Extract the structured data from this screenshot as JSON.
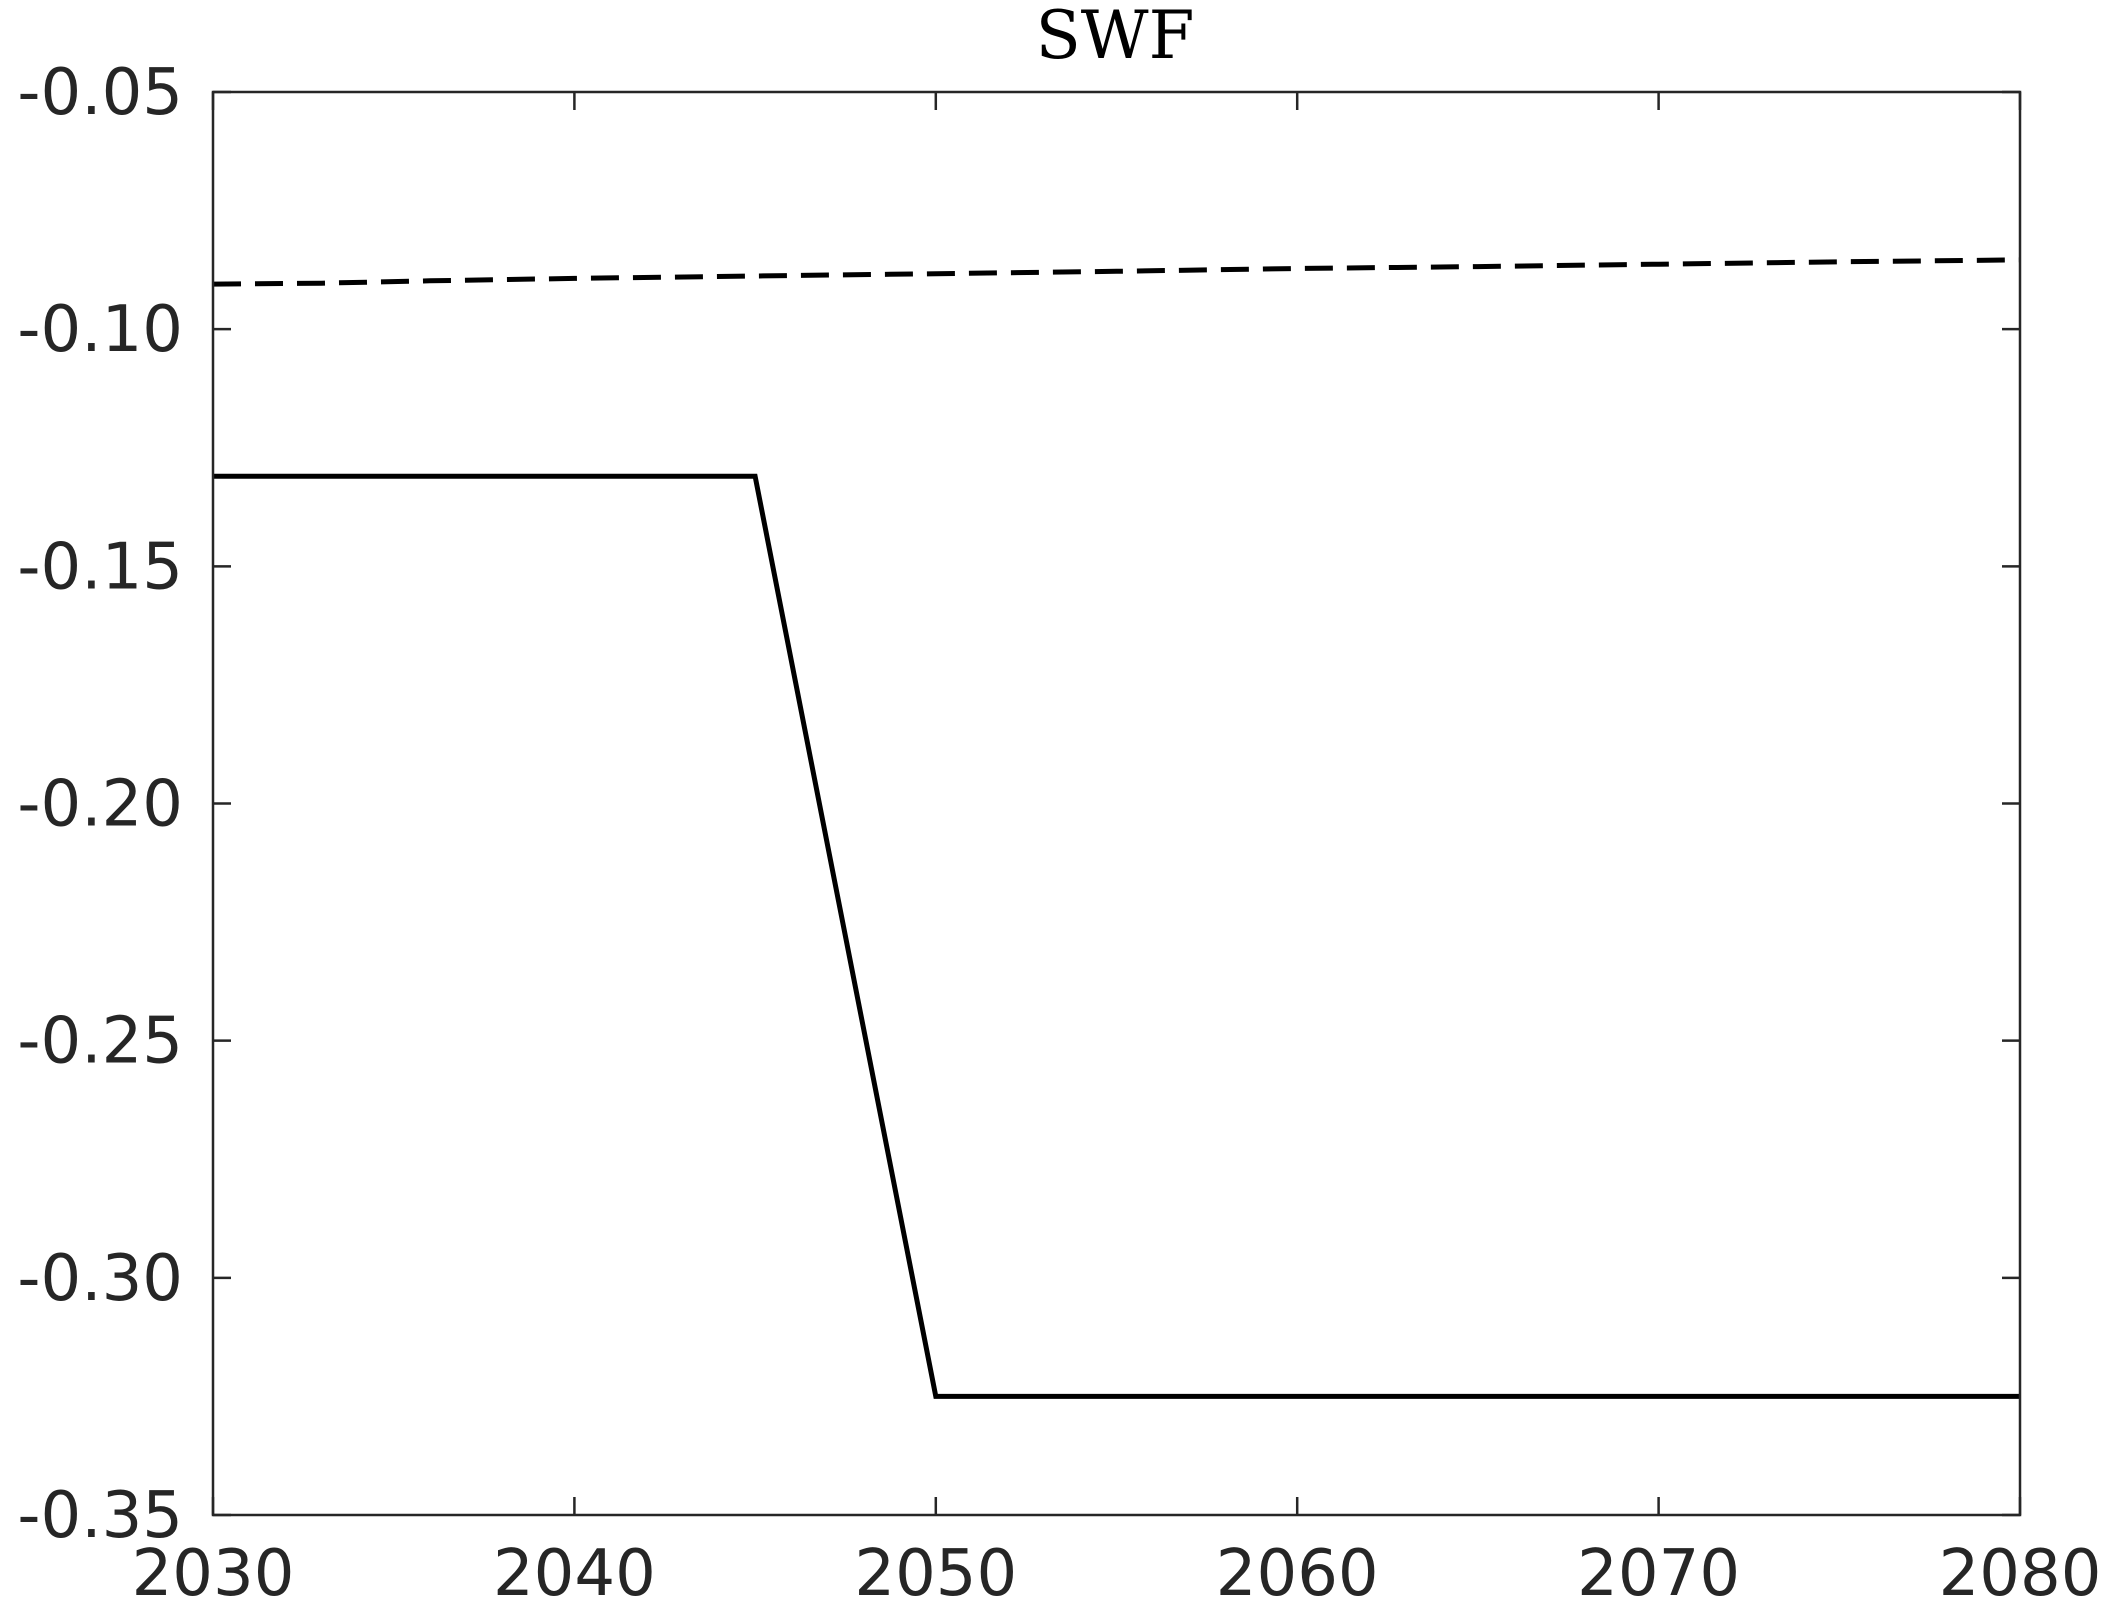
{
  "chart_data": {
    "type": "line",
    "title": "SWF",
    "xlabel": "",
    "ylabel": "",
    "xlim": [
      2030,
      2080
    ],
    "ylim": [
      -0.35,
      -0.05
    ],
    "x_ticks": [
      2030,
      2040,
      2050,
      2060,
      2070,
      2080
    ],
    "x_tick_labels": [
      "2030",
      "2040",
      "2050",
      "2060",
      "2070",
      "2080"
    ],
    "y_ticks": [
      -0.05,
      -0.1,
      -0.15,
      -0.2,
      -0.25,
      -0.3,
      -0.35
    ],
    "y_tick_labels": [
      "-0.05",
      "-0.10",
      "-0.15",
      "-0.20",
      "-0.25",
      "-0.30",
      "-0.35"
    ],
    "grid": false,
    "series": [
      {
        "style": "solid",
        "color": "#000000",
        "points": [
          [
            2030,
            -0.131
          ],
          [
            2045,
            -0.131
          ],
          [
            2050,
            -0.325
          ],
          [
            2080,
            -0.325
          ]
        ]
      },
      {
        "style": "dashed",
        "color": "#000000",
        "points": [
          [
            2030,
            -0.0905
          ],
          [
            2033,
            -0.0903
          ],
          [
            2036,
            -0.0898
          ],
          [
            2040,
            -0.0893
          ],
          [
            2045,
            -0.0888
          ],
          [
            2050,
            -0.0883
          ],
          [
            2055,
            -0.0878
          ],
          [
            2060,
            -0.0872
          ],
          [
            2065,
            -0.0868
          ],
          [
            2070,
            -0.0863
          ],
          [
            2075,
            -0.0858
          ],
          [
            2080,
            -0.0854
          ]
        ]
      }
    ]
  }
}
